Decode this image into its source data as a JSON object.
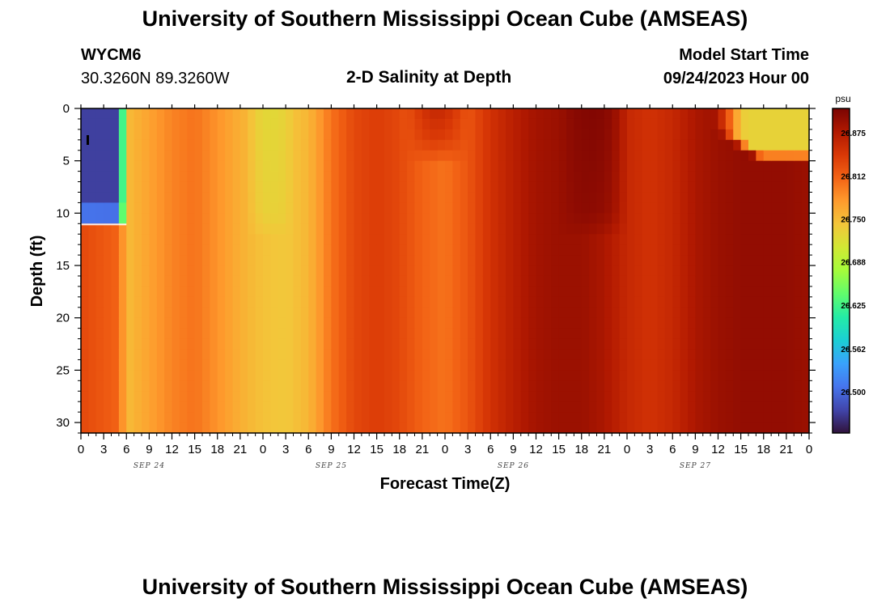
{
  "page": {
    "title": "University of Southern Mississippi Ocean Cube (AMSEAS)",
    "footer_title": "University of Southern Mississippi Ocean Cube (AMSEAS)",
    "station": "WYCM6",
    "location": "30.3260N  89.3260W",
    "plot_title": "2-D Salinity at Depth",
    "model_start_label": "Model Start Time",
    "model_start_value": "09/24/2023 Hour 00"
  },
  "chart_data": {
    "type": "heatmap",
    "title": "2-D Salinity at Depth",
    "xlabel": "Forecast Time(Z)",
    "ylabel": "Depth (ft)",
    "x_unit": "hours since 09/24/2023 00Z",
    "x_range": [
      0,
      96
    ],
    "x_tick_labels": [
      "0",
      "3",
      "6",
      "9",
      "12",
      "15",
      "18",
      "21",
      "0",
      "3",
      "6",
      "9",
      "12",
      "15",
      "18",
      "21",
      "0",
      "3",
      "6",
      "9",
      "12",
      "15",
      "18",
      "21",
      "0",
      "3",
      "6",
      "9",
      "12",
      "15",
      "18",
      "21",
      "0"
    ],
    "day_labels": [
      "SEP 24",
      "SEP 25",
      "SEP 26",
      "SEP 27"
    ],
    "y_range": [
      0,
      31
    ],
    "y_inverted": true,
    "y_ticks": [
      0,
      5,
      10,
      15,
      20,
      25,
      30
    ],
    "colorbar": {
      "unit": "psu",
      "range": [
        26.44,
        26.91
      ],
      "tick_labels": [
        "26.500",
        "26.562",
        "26.625",
        "26.688",
        "26.750",
        "26.812",
        "26.875"
      ],
      "tick_values": [
        26.5,
        26.562,
        26.625,
        26.688,
        26.75,
        26.812,
        26.875
      ],
      "colormap": [
        "#30123b",
        "#4145ab",
        "#4675ed",
        "#39a2fc",
        "#1bcfd4",
        "#24eca6",
        "#61fc6c",
        "#a4fc3b",
        "#d1e834",
        "#f3c63a",
        "#fe9b2d",
        "#f36315",
        "#d93806",
        "#b11901",
        "#7a0402"
      ]
    },
    "column_salinity_psu": {
      "hours": [
        0,
        5,
        6,
        9,
        12,
        15,
        18,
        21,
        24,
        27,
        30,
        33,
        36,
        39,
        42,
        45,
        48,
        51,
        54,
        57,
        60,
        63,
        66,
        69,
        72,
        75,
        78,
        81,
        84,
        87,
        90,
        93,
        96
      ],
      "values": [
        26.83,
        26.81,
        26.75,
        26.77,
        26.79,
        26.8,
        26.78,
        26.76,
        26.745,
        26.74,
        26.755,
        26.8,
        26.83,
        26.84,
        26.83,
        26.81,
        26.8,
        26.82,
        26.85,
        26.87,
        26.885,
        26.89,
        26.89,
        26.88,
        26.86,
        26.85,
        26.86,
        26.88,
        26.89,
        26.895,
        26.895,
        26.895,
        26.89
      ]
    },
    "features": [
      {
        "type": "fresh-surface-lens",
        "hours": [
          0,
          6
        ],
        "depth_ft": [
          0,
          11
        ],
        "salinity_psu": 26.47
      },
      {
        "type": "fresh-surface-dip",
        "hours": [
          22,
          28
        ],
        "depth_ft": [
          0,
          10
        ],
        "salinity_psu": 26.725
      },
      {
        "type": "salty-surface-bulge",
        "hours": [
          43,
          51
        ],
        "depth_ft": [
          0,
          3
        ],
        "salinity_psu": 26.86
      },
      {
        "type": "salty-core",
        "hours": [
          63,
          72
        ],
        "depth_ft": [
          0,
          10
        ],
        "salinity_psu": 26.905
      },
      {
        "type": "fresh-surface-intrusion",
        "hours": [
          83,
          96
        ],
        "depth_ft": [
          0,
          4
        ],
        "salinity_psu": 26.73
      }
    ]
  }
}
